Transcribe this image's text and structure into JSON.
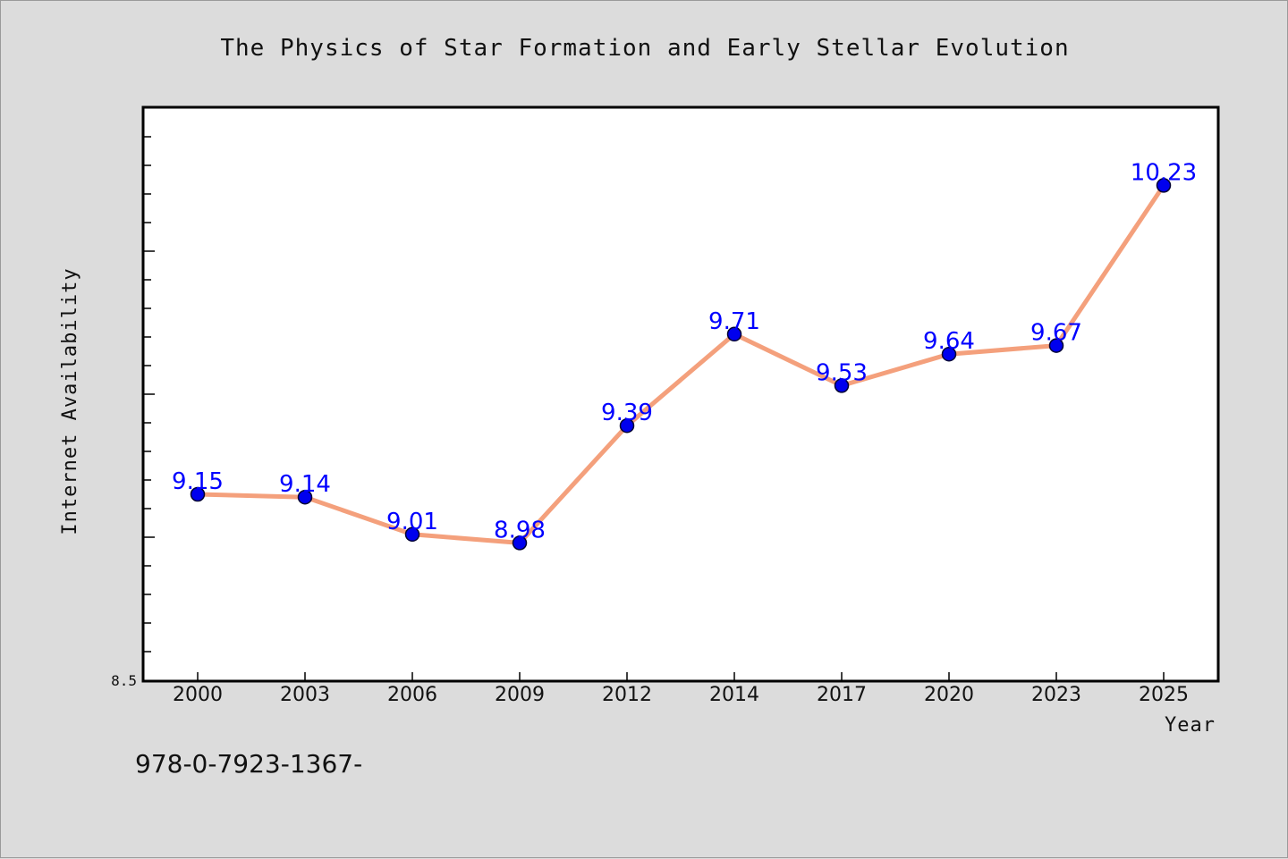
{
  "chart_data": {
    "type": "line",
    "title": "The Physics of Star Formation and Early Stellar Evolution",
    "xlabel": "Year",
    "ylabel": "Internet Availability",
    "categories": [
      "2000",
      "2003",
      "2006",
      "2009",
      "2012",
      "2014",
      "2017",
      "2020",
      "2023",
      "2025"
    ],
    "series": [
      {
        "values": [
          9.15,
          9.14,
          9.01,
          8.98,
          9.39,
          9.71,
          9.53,
          9.64,
          9.67,
          10.23
        ],
        "labels": [
          "9.15",
          "9.14",
          "9.01",
          "8.98",
          "9.39",
          "9.71",
          "9.53",
          "9.64",
          "9.67",
          "10.23"
        ]
      }
    ],
    "ylim": [
      8.5,
      10.5
    ],
    "y_min_label": "8.5",
    "grid": false,
    "legend": "none",
    "colors": {
      "line": "#f4a07c",
      "marker": "#0000ee",
      "marker_edge": "#000033",
      "data_label": "#0000ff",
      "plot_background": "#ffffff",
      "page_background": "#dcdcdc"
    }
  },
  "footer": {
    "code": "978-0-7923-1367-"
  }
}
